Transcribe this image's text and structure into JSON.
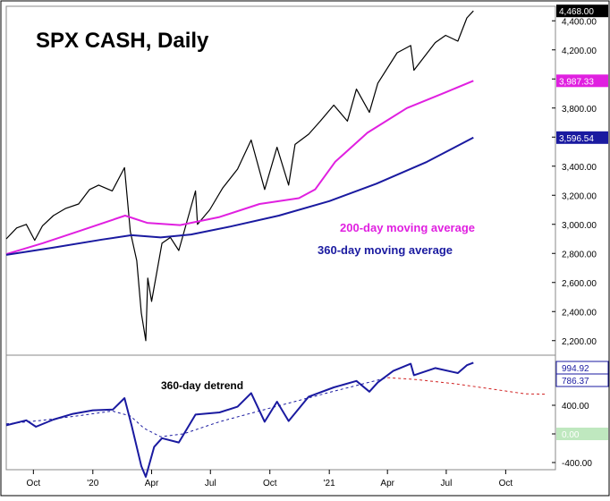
{
  "chart_data": [
    {
      "type": "line",
      "title": "SPX CASH, Daily",
      "y_range": [
        2100,
        4500
      ],
      "y_ticks": [
        "2,200.00",
        "2,400.00",
        "2,600.00",
        "2,800.00",
        "3,000.00",
        "3,200.00",
        "3,400.00",
        "3,600.00",
        "3,800.00",
        "4,000.00",
        "4,200.00",
        "4,400.00"
      ],
      "y_tick_values": [
        2200,
        2400,
        2600,
        2800,
        3000,
        3200,
        3400,
        3600,
        3800,
        4000,
        4200,
        4400
      ],
      "x_ticks": [
        "Oct",
        "'20",
        "Apr",
        "Jul",
        "Oct",
        "'21",
        "Apr",
        "Jul",
        "Oct"
      ],
      "x_tick_dates": [
        "2019-10-01",
        "2020-01-01",
        "2020-04-01",
        "2020-07-01",
        "2020-10-01",
        "2021-01-01",
        "2021-04-01",
        "2021-07-01",
        "2021-10-01"
      ],
      "last_value_badges": [
        {
          "label": "4,468.00",
          "value": 4468,
          "color": "#000000"
        },
        {
          "label": "3,987.33",
          "value": 3987.33,
          "color": "#e020e0"
        },
        {
          "label": "3,596.54",
          "value": 3596.54,
          "color": "#1a1aa0"
        }
      ],
      "annotations": [
        {
          "text": "200-day moving average",
          "color": "#e020e0"
        },
        {
          "text": "360-day moving average",
          "color": "#1a1aa0"
        }
      ],
      "series": [
        {
          "key": "price",
          "color": "#000000",
          "points": [
            [
              "2019-08-20",
              2900
            ],
            [
              "2019-09-05",
              2975
            ],
            [
              "2019-09-20",
              3000
            ],
            [
              "2019-10-03",
              2890
            ],
            [
              "2019-10-15",
              2990
            ],
            [
              "2019-11-01",
              3060
            ],
            [
              "2019-11-20",
              3110
            ],
            [
              "2019-12-10",
              3140
            ],
            [
              "2019-12-27",
              3240
            ],
            [
              "2020-01-10",
              3270
            ],
            [
              "2020-01-31",
              3230
            ],
            [
              "2020-02-19",
              3390
            ],
            [
              "2020-02-28",
              2950
            ],
            [
              "2020-03-09",
              2750
            ],
            [
              "2020-03-16",
              2390
            ],
            [
              "2020-03-23",
              2200
            ],
            [
              "2020-03-26",
              2630
            ],
            [
              "2020-04-01",
              2470
            ],
            [
              "2020-04-17",
              2870
            ],
            [
              "2020-04-30",
              2910
            ],
            [
              "2020-05-13",
              2820
            ],
            [
              "2020-06-08",
              3230
            ],
            [
              "2020-06-11",
              3000
            ],
            [
              "2020-06-30",
              3100
            ],
            [
              "2020-07-20",
              3250
            ],
            [
              "2020-08-12",
              3380
            ],
            [
              "2020-09-02",
              3580
            ],
            [
              "2020-09-23",
              3240
            ],
            [
              "2020-10-12",
              3530
            ],
            [
              "2020-10-30",
              3270
            ],
            [
              "2020-11-09",
              3550
            ],
            [
              "2020-11-30",
              3620
            ],
            [
              "2020-12-18",
              3710
            ],
            [
              "2021-01-08",
              3820
            ],
            [
              "2021-01-29",
              3710
            ],
            [
              "2021-02-12",
              3930
            ],
            [
              "2021-03-04",
              3770
            ],
            [
              "2021-03-17",
              3970
            ],
            [
              "2021-04-16",
              4180
            ],
            [
              "2021-05-07",
              4230
            ],
            [
              "2021-05-12",
              4060
            ],
            [
              "2021-06-14",
              4250
            ],
            [
              "2021-06-30",
              4300
            ],
            [
              "2021-07-19",
              4260
            ],
            [
              "2021-08-02",
              4420
            ],
            [
              "2021-08-12",
              4468
            ]
          ]
        },
        {
          "key": "ma200",
          "name": "200-day moving average",
          "color": "#e020e0",
          "points": [
            [
              "2019-08-20",
              2795
            ],
            [
              "2019-10-15",
              2870
            ],
            [
              "2019-12-15",
              2960
            ],
            [
              "2020-02-20",
              3060
            ],
            [
              "2020-03-25",
              3010
            ],
            [
              "2020-05-15",
              2995
            ],
            [
              "2020-07-15",
              3050
            ],
            [
              "2020-09-15",
              3140
            ],
            [
              "2020-11-15",
              3180
            ],
            [
              "2020-12-10",
              3240
            ],
            [
              "2021-01-10",
              3430
            ],
            [
              "2021-03-01",
              3630
            ],
            [
              "2021-05-01",
              3800
            ],
            [
              "2021-07-01",
              3910
            ],
            [
              "2021-08-12",
              3987.33
            ]
          ]
        },
        {
          "key": "ma360",
          "name": "360-day moving average",
          "color": "#1a1aa0",
          "points": [
            [
              "2019-08-20",
              2790
            ],
            [
              "2019-11-01",
              2840
            ],
            [
              "2020-01-15",
              2895
            ],
            [
              "2020-03-01",
              2925
            ],
            [
              "2020-04-15",
              2910
            ],
            [
              "2020-06-01",
              2930
            ],
            [
              "2020-08-01",
              2985
            ],
            [
              "2020-10-15",
              3060
            ],
            [
              "2021-01-01",
              3160
            ],
            [
              "2021-03-15",
              3280
            ],
            [
              "2021-06-01",
              3430
            ],
            [
              "2021-08-12",
              3596.54
            ]
          ]
        }
      ]
    },
    {
      "type": "line",
      "y_range": [
        -500,
        1100
      ],
      "y_ticks": [
        "400.00",
        "0.00",
        "-400.00"
      ],
      "y_tick_values": [
        400,
        0,
        -400
      ],
      "last_value_badges": [
        {
          "label": "994.92",
          "value": 994.92,
          "color": "#1a1aa0"
        },
        {
          "label": "786.37",
          "value": 786.37,
          "color": "#1a1aa0"
        },
        {
          "label": "0.00",
          "value": 0,
          "color": "#bfe8bf"
        }
      ],
      "annotations": [
        {
          "text": "360-day detrend",
          "color": "#000000"
        }
      ],
      "series": [
        {
          "key": "detrend",
          "color": "#1a1aa0",
          "points": [
            [
              "2019-08-20",
              120
            ],
            [
              "2019-09-20",
              190
            ],
            [
              "2019-10-05",
              100
            ],
            [
              "2019-11-01",
              200
            ],
            [
              "2019-12-01",
              280
            ],
            [
              "2020-01-01",
              330
            ],
            [
              "2020-02-01",
              340
            ],
            [
              "2020-02-19",
              500
            ],
            [
              "2020-03-01",
              120
            ],
            [
              "2020-03-16",
              -450
            ],
            [
              "2020-03-23",
              -600
            ],
            [
              "2020-04-05",
              -180
            ],
            [
              "2020-04-17",
              -60
            ],
            [
              "2020-05-13",
              -120
            ],
            [
              "2020-06-08",
              270
            ],
            [
              "2020-07-15",
              300
            ],
            [
              "2020-08-12",
              380
            ],
            [
              "2020-09-02",
              570
            ],
            [
              "2020-09-23",
              170
            ],
            [
              "2020-10-12",
              450
            ],
            [
              "2020-10-30",
              180
            ],
            [
              "2020-11-30",
              520
            ],
            [
              "2021-01-08",
              650
            ],
            [
              "2021-02-12",
              740
            ],
            [
              "2021-03-04",
              590
            ],
            [
              "2021-03-17",
              720
            ],
            [
              "2021-04-10",
              880
            ],
            [
              "2021-05-07",
              980
            ],
            [
              "2021-05-12",
              820
            ],
            [
              "2021-06-14",
              920
            ],
            [
              "2021-07-19",
              850
            ],
            [
              "2021-08-02",
              960
            ],
            [
              "2021-08-12",
              994.92
            ]
          ]
        },
        {
          "key": "detrend-trend",
          "color": "#1a1aa0",
          "dash": true,
          "points": [
            [
              "2019-08-20",
              140
            ],
            [
              "2019-10-15",
              190
            ],
            [
              "2019-12-15",
              260
            ],
            [
              "2020-01-31",
              320
            ],
            [
              "2020-02-28",
              250
            ],
            [
              "2020-03-20",
              80
            ],
            [
              "2020-04-15",
              -40
            ],
            [
              "2020-05-20",
              0
            ],
            [
              "2020-07-15",
              170
            ],
            [
              "2020-10-01",
              360
            ],
            [
              "2021-01-01",
              580
            ],
            [
              "2021-04-01",
              786.37
            ]
          ]
        },
        {
          "key": "detrend-projection",
          "color": "#d02020",
          "dash": true,
          "points": [
            [
              "2021-04-01",
              786.37
            ],
            [
              "2021-05-15",
              760
            ],
            [
              "2021-07-15",
              700
            ],
            [
              "2021-09-15",
              620
            ],
            [
              "2021-10-31",
              560
            ],
            [
              "2021-12-01",
              555
            ]
          ]
        }
      ]
    }
  ]
}
